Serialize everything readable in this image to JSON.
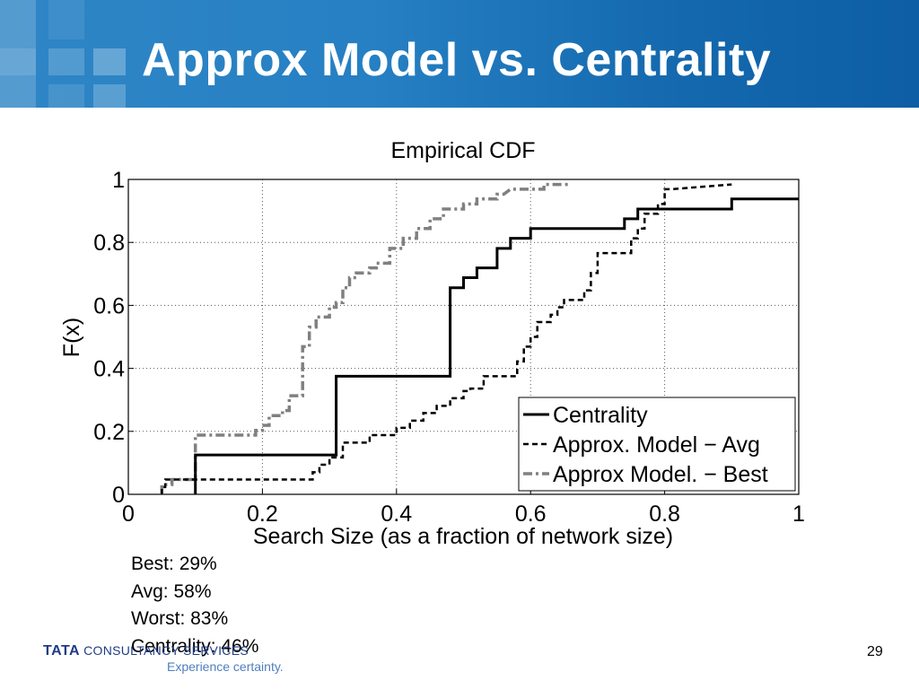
{
  "slide": {
    "title": "Approx Model vs. Centrality",
    "page_number": "29",
    "footer": {
      "logo_brand": "TATA",
      "logo_company": "CONSULTANCY SERVICES",
      "tagline": "Experience certainty."
    },
    "stats": [
      {
        "text": "Best: 29%"
      },
      {
        "text": "Avg: 58%"
      },
      {
        "text": "Worst: 83%"
      },
      {
        "text": "Centrality:  46%"
      }
    ]
  },
  "chart_data": {
    "type": "line",
    "title": "Empirical CDF",
    "xlabel": "Search Size (as a fraction of network size)",
    "ylabel": "F(x)",
    "xlim": [
      0,
      1
    ],
    "ylim": [
      0,
      1
    ],
    "xticks": [
      "0",
      "0.2",
      "0.4",
      "0.6",
      "0.8",
      "1"
    ],
    "yticks": [
      "0",
      "0.2",
      "0.4",
      "0.6",
      "0.8",
      "1"
    ],
    "grid": true,
    "legend_position": "bottom-right",
    "series": [
      {
        "name": "Centrality",
        "style": "solid",
        "color": "#000000",
        "x": [
          0.1,
          0.1,
          0.31,
          0.31,
          0.48,
          0.48,
          0.5,
          0.5,
          0.52,
          0.52,
          0.55,
          0.55,
          0.57,
          0.57,
          0.6,
          0.6,
          0.74,
          0.74,
          0.76,
          0.76,
          0.9,
          0.9,
          1.0
        ],
        "y": [
          0,
          0.125,
          0.125,
          0.375,
          0.375,
          0.656,
          0.656,
          0.688,
          0.688,
          0.719,
          0.719,
          0.781,
          0.781,
          0.813,
          0.813,
          0.844,
          0.844,
          0.875,
          0.875,
          0.906,
          0.906,
          0.938,
          0.938
        ]
      },
      {
        "name": "Approx. Model − Avg",
        "style": "dashed",
        "color": "#000000",
        "x": [
          0.05,
          0.05,
          0.055,
          0.055,
          0.275,
          0.275,
          0.285,
          0.285,
          0.3,
          0.3,
          0.32,
          0.32,
          0.36,
          0.36,
          0.4,
          0.4,
          0.42,
          0.42,
          0.44,
          0.44,
          0.46,
          0.46,
          0.48,
          0.48,
          0.5,
          0.5,
          0.51,
          0.51,
          0.53,
          0.53,
          0.58,
          0.58,
          0.59,
          0.59,
          0.6,
          0.6,
          0.61,
          0.61,
          0.63,
          0.63,
          0.64,
          0.64,
          0.65,
          0.65,
          0.68,
          0.68,
          0.69,
          0.69,
          0.7,
          0.7,
          0.75,
          0.75,
          0.76,
          0.76,
          0.77,
          0.77,
          0.79,
          0.79,
          0.8,
          0.8,
          0.81,
          0.81,
          0.9
        ],
        "y": [
          0,
          0.023,
          0.023,
          0.047,
          0.047,
          0.07,
          0.07,
          0.094,
          0.094,
          0.117,
          0.117,
          0.164,
          0.164,
          0.188,
          0.188,
          0.211,
          0.211,
          0.234,
          0.234,
          0.258,
          0.258,
          0.281,
          0.281,
          0.305,
          0.305,
          0.328,
          0.328,
          0.336,
          0.336,
          0.375,
          0.375,
          0.422,
          0.422,
          0.469,
          0.469,
          0.5,
          0.5,
          0.547,
          0.547,
          0.57,
          0.57,
          0.594,
          0.594,
          0.617,
          0.617,
          0.648,
          0.648,
          0.703,
          0.703,
          0.766,
          0.766,
          0.813,
          0.813,
          0.844,
          0.844,
          0.891,
          0.891,
          0.922,
          0.922,
          0.969,
          0.969,
          0.969,
          0.984
        ]
      },
      {
        "name": "Approx Model. − Best",
        "style": "dashdot",
        "color": "#808080",
        "x": [
          0.05,
          0.05,
          0.065,
          0.065,
          0.1,
          0.1,
          0.12,
          0.12,
          0.19,
          0.19,
          0.2,
          0.2,
          0.21,
          0.21,
          0.23,
          0.23,
          0.24,
          0.24,
          0.26,
          0.26,
          0.26,
          0.26,
          0.26,
          0.26,
          0.26,
          0.26,
          0.27,
          0.27,
          0.28,
          0.28,
          0.3,
          0.3,
          0.31,
          0.31,
          0.32,
          0.32,
          0.33,
          0.33,
          0.34,
          0.34,
          0.36,
          0.36,
          0.37,
          0.37,
          0.39,
          0.39,
          0.41,
          0.41,
          0.43,
          0.43,
          0.45,
          0.45,
          0.47,
          0.47,
          0.5,
          0.5,
          0.52,
          0.52,
          0.55,
          0.55,
          0.56,
          0.56,
          0.57,
          0.57,
          0.59,
          0.59,
          0.62,
          0.62,
          0.66,
          0.66
        ],
        "y": [
          0,
          0.031,
          0.031,
          0.047,
          0.047,
          0.188,
          0.188,
          0.188,
          0.188,
          0.203,
          0.203,
          0.219,
          0.219,
          0.25,
          0.25,
          0.266,
          0.266,
          0.313,
          0.313,
          0.375,
          0.375,
          0.406,
          0.406,
          0.438,
          0.438,
          0.469,
          0.469,
          0.531,
          0.531,
          0.563,
          0.563,
          0.594,
          0.594,
          0.609,
          0.609,
          0.656,
          0.656,
          0.688,
          0.688,
          0.703,
          0.703,
          0.719,
          0.719,
          0.734,
          0.734,
          0.781,
          0.781,
          0.813,
          0.813,
          0.844,
          0.844,
          0.875,
          0.875,
          0.906,
          0.906,
          0.922,
          0.922,
          0.938,
          0.938,
          0.953,
          0.953,
          0.953,
          0.969,
          0.969,
          0.969,
          0.969,
          0.969,
          0.984,
          0.984,
          0.984
        ]
      }
    ]
  }
}
